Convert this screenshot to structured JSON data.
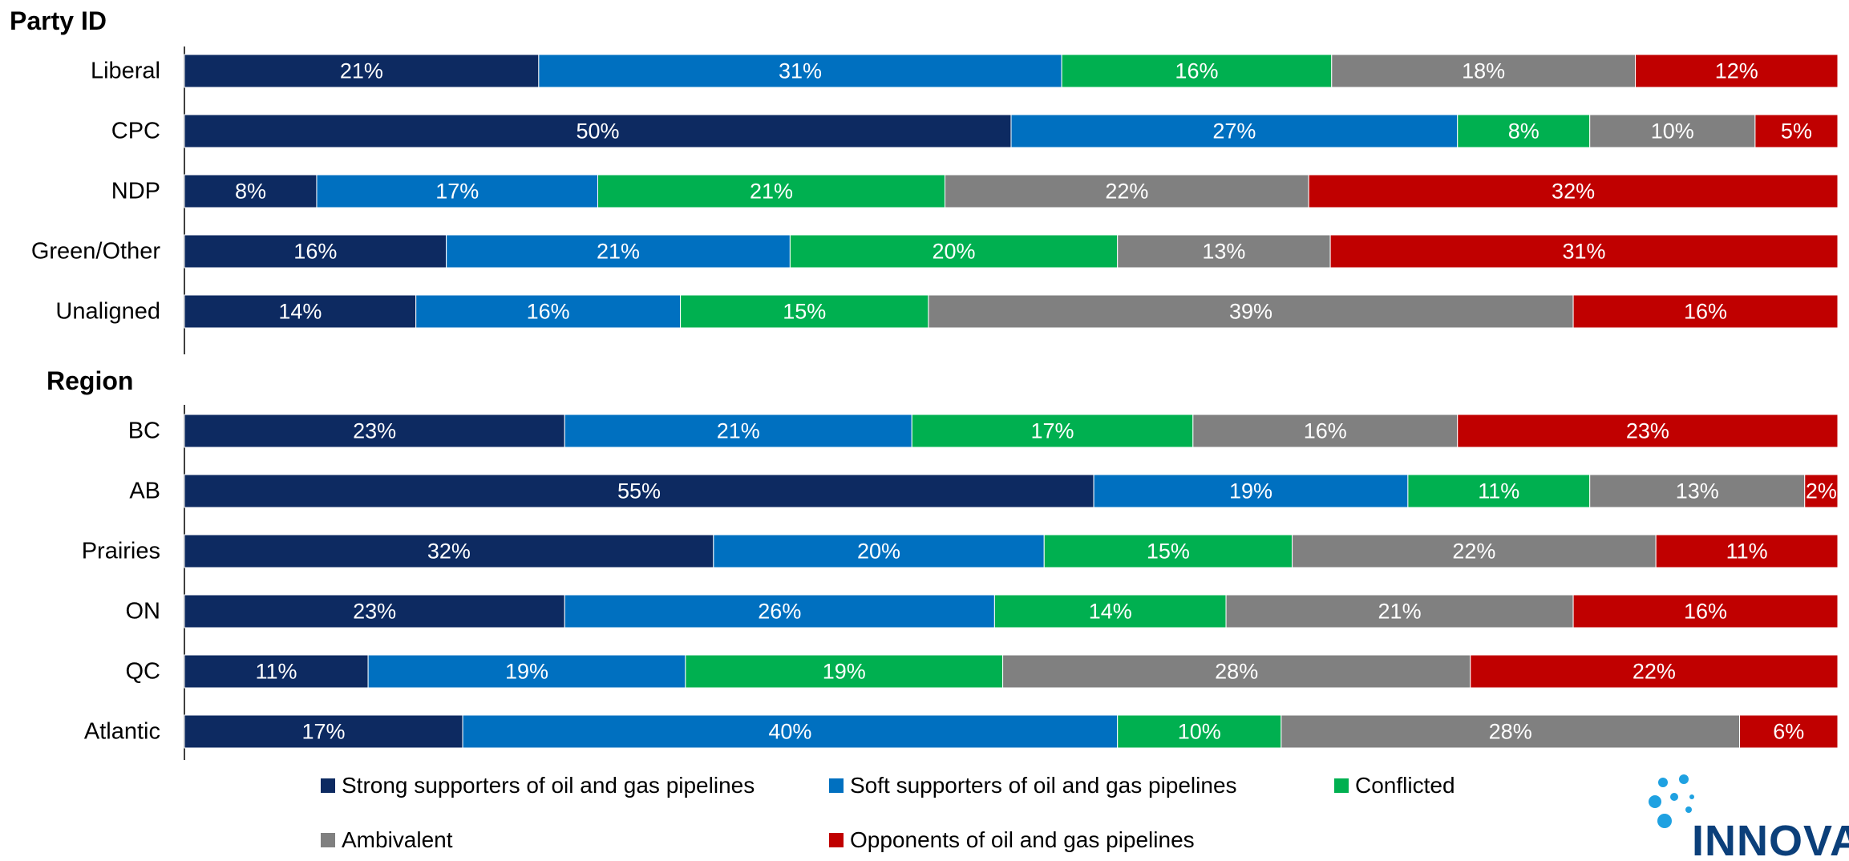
{
  "colors": {
    "strong": "#0d2a61",
    "soft": "#0070c0",
    "conflicted": "#00b050",
    "ambivalent": "#808080",
    "opponents": "#c00000",
    "logo": "#1fa1e1",
    "logo_text": "#0b3f7a"
  },
  "legend": [
    {
      "key": "strong",
      "label": "Strong supporters of oil and gas pipelines"
    },
    {
      "key": "soft",
      "label": "Soft supporters of oil and gas pipelines"
    },
    {
      "key": "conflicted",
      "label": "Conflicted"
    },
    {
      "key": "ambivalent",
      "label": "Ambivalent"
    },
    {
      "key": "opponents",
      "label": "Opponents of oil and gas pipelines"
    }
  ],
  "logo": {
    "text": "INNOVAT"
  },
  "chart_data": {
    "type": "bar",
    "stacked": true,
    "orientation": "horizontal",
    "value_unit": "%",
    "groups": [
      {
        "title": "Party ID",
        "categories": [
          "Liberal",
          "CPC",
          "NDP",
          "Green/Other",
          "Unaligned"
        ],
        "series": [
          {
            "key": "strong",
            "name": "Strong supporters of oil and gas pipelines",
            "values": [
              21,
              50,
              8,
              16,
              14
            ]
          },
          {
            "key": "soft",
            "name": "Soft supporters of oil and gas pipelines",
            "values": [
              31,
              27,
              17,
              21,
              16
            ]
          },
          {
            "key": "conflicted",
            "name": "Conflicted",
            "values": [
              16,
              8,
              21,
              20,
              15
            ]
          },
          {
            "key": "ambivalent",
            "name": "Ambivalent",
            "values": [
              18,
              10,
              22,
              13,
              39
            ]
          },
          {
            "key": "opponents",
            "name": "Opponents of oil and gas pipelines",
            "values": [
              12,
              5,
              32,
              31,
              16
            ]
          }
        ]
      },
      {
        "title": "Region",
        "categories": [
          "BC",
          "AB",
          "Prairies",
          "ON",
          "QC",
          "Atlantic"
        ],
        "series": [
          {
            "key": "strong",
            "name": "Strong supporters of oil and gas pipelines",
            "values": [
              23,
              55,
              32,
              23,
              11,
              17
            ]
          },
          {
            "key": "soft",
            "name": "Soft supporters of oil and gas pipelines",
            "values": [
              21,
              19,
              20,
              26,
              19,
              40
            ]
          },
          {
            "key": "conflicted",
            "name": "Conflicted",
            "values": [
              17,
              11,
              15,
              14,
              19,
              10
            ]
          },
          {
            "key": "ambivalent",
            "name": "Ambivalent",
            "values": [
              16,
              13,
              22,
              21,
              28,
              28
            ]
          },
          {
            "key": "opponents",
            "name": "Opponents of oil and gas pipelines",
            "values": [
              23,
              2,
              11,
              16,
              22,
              6
            ]
          }
        ]
      }
    ]
  }
}
